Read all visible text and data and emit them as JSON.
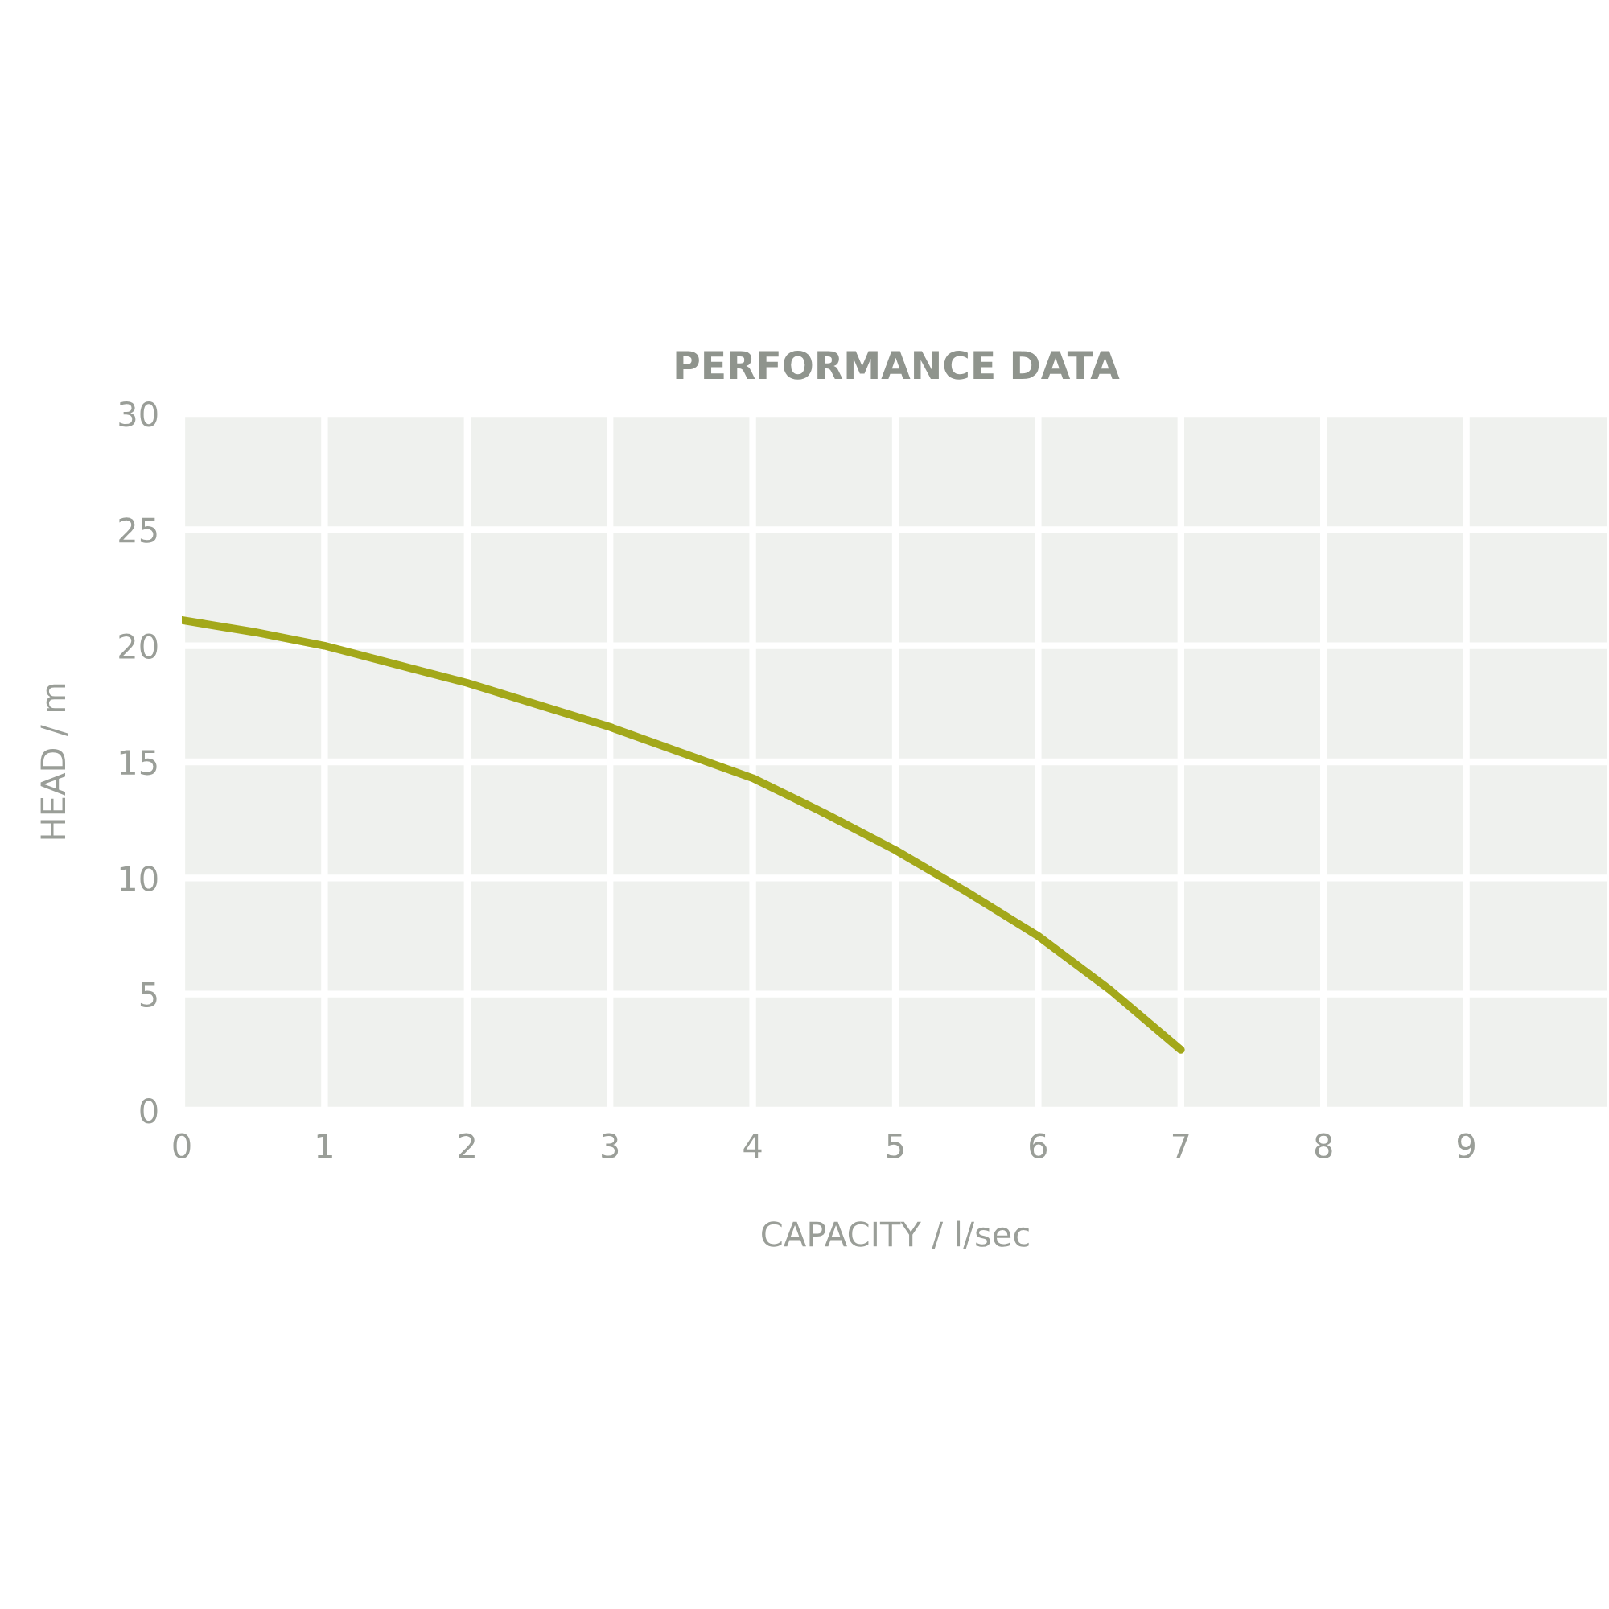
{
  "chart_data": {
    "type": "line",
    "title": "PERFORMANCE DATA",
    "xlabel": "CAPACITY / l/sec",
    "ylabel": "HEAD / m",
    "series": [
      {
        "color": "#a3a81a",
        "x": [
          0,
          0.5,
          1,
          2,
          3,
          3.5,
          4,
          4.5,
          5,
          5.5,
          6,
          6.5,
          7
        ],
        "values": [
          21.1,
          20.6,
          20.0,
          18.4,
          16.5,
          15.4,
          14.3,
          12.8,
          11.2,
          9.4,
          7.5,
          5.2,
          2.6
        ]
      }
    ],
    "xlim": [
      0,
      10
    ],
    "xticks": [
      0,
      1,
      2,
      3,
      4,
      5,
      6,
      7,
      8,
      9
    ],
    "ylim": [
      0,
      30
    ],
    "yticks": [
      0,
      5,
      10,
      15,
      20,
      25,
      30
    ],
    "grid": true,
    "marker": "none",
    "line_style": "solid"
  }
}
